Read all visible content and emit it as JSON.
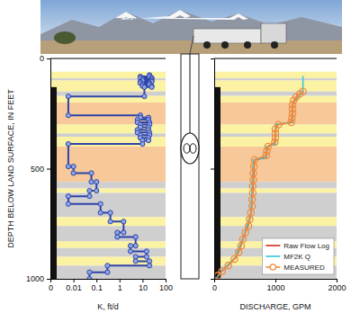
{
  "chart_data": [
    {
      "type": "line",
      "x_label": "K, ft/d",
      "y_label": "DEPTH BELOW LAND SURFACE, IN FEET",
      "log": "x",
      "xlim": [
        0.001,
        100
      ],
      "xticks": [
        {
          "value": 0.001,
          "label": "0"
        },
        0.01,
        0.1,
        1,
        10,
        100
      ],
      "ylim": [
        0,
        1000
      ],
      "yticks": [
        0,
        500,
        1000
      ],
      "bands": [
        {
          "top": 60,
          "bottom": 90,
          "color": "#fbf2a4"
        },
        {
          "top": 90,
          "bottom": 100,
          "color": "#cfcfcf"
        },
        {
          "top": 100,
          "bottom": 150,
          "color": "#fbf2a4"
        },
        {
          "top": 150,
          "bottom": 170,
          "color": "#cfcfcf"
        },
        {
          "top": 170,
          "bottom": 200,
          "color": "#fbf2a4"
        },
        {
          "top": 200,
          "bottom": 300,
          "color": "#f7c99a"
        },
        {
          "top": 300,
          "bottom": 340,
          "color": "#fbf2a4"
        },
        {
          "top": 340,
          "bottom": 355,
          "color": "#cfcfcf"
        },
        {
          "top": 355,
          "bottom": 400,
          "color": "#fbf2a4"
        },
        {
          "top": 400,
          "bottom": 560,
          "color": "#f7c99a"
        },
        {
          "top": 560,
          "bottom": 590,
          "color": "#cfcfcf"
        },
        {
          "top": 590,
          "bottom": 610,
          "color": "#fbf2a4"
        },
        {
          "top": 610,
          "bottom": 720,
          "color": "#cfcfcf"
        },
        {
          "top": 720,
          "bottom": 760,
          "color": "#fbf2a4"
        },
        {
          "top": 760,
          "bottom": 830,
          "color": "#cfcfcf"
        },
        {
          "top": 830,
          "bottom": 860,
          "color": "#fbf2a4"
        },
        {
          "top": 860,
          "bottom": 900,
          "color": "#cfcfcf"
        },
        {
          "top": 900,
          "bottom": 940,
          "color": "#fbf2a4"
        },
        {
          "top": 940,
          "bottom": 1000,
          "color": "#cfcfcf"
        }
      ],
      "casing": {
        "top": 130,
        "bottom": 1000
      },
      "series": [
        {
          "color": "#2f43a8",
          "marker": "circle",
          "line_style": "solid",
          "x": [
            20,
            20,
            8,
            8,
            25,
            25,
            10,
            10,
            25,
            25,
            8,
            8,
            20,
            20,
            10,
            10,
            25,
            25,
            12,
            12,
            0.006,
            0.006,
            8,
            8,
            18,
            18,
            6,
            6,
            20,
            20,
            8,
            8,
            18,
            18,
            6,
            6,
            20,
            20,
            8,
            8,
            18,
            18,
            10,
            10,
            0.006,
            0.006,
            0.01,
            0.01,
            0.06,
            0.06,
            0.1,
            0.1,
            0.05,
            0.05,
            0.006,
            0.006,
            0.15,
            0.15,
            0.4,
            0.4,
            1.5,
            1.5,
            0.8,
            0.8,
            5,
            5,
            3,
            3,
            15,
            15,
            5,
            5,
            20,
            20,
            0.3,
            0.3,
            0.05,
            0.05
          ],
          "y": [
            75,
            82,
            82,
            88,
            88,
            94,
            94,
            100,
            100,
            106,
            106,
            112,
            112,
            118,
            118,
            125,
            125,
            130,
            130,
            172,
            172,
            258,
            258,
            268,
            268,
            278,
            278,
            290,
            290,
            300,
            300,
            312,
            312,
            324,
            324,
            336,
            336,
            348,
            348,
            360,
            360,
            372,
            372,
            388,
            388,
            490,
            490,
            520,
            520,
            560,
            560,
            600,
            600,
            625,
            625,
            660,
            660,
            700,
            700,
            740,
            740,
            790,
            790,
            810,
            810,
            850,
            850,
            875,
            875,
            900,
            900,
            920,
            920,
            940,
            940,
            970,
            970,
            1000
          ]
        }
      ]
    },
    {
      "type": "line",
      "x_label": "DISCHARGE, GPM",
      "xlim": [
        0,
        2000
      ],
      "xticks": [
        0,
        1000,
        2000
      ],
      "ylim": [
        0,
        1000
      ],
      "yticks": [
        0,
        500,
        1000
      ],
      "tick_labels": "x",
      "legend": "lower right",
      "bands": [
        {
          "top": 60,
          "bottom": 90,
          "color": "#fbf2a4"
        },
        {
          "top": 90,
          "bottom": 100,
          "color": "#cfcfcf"
        },
        {
          "top": 100,
          "bottom": 150,
          "color": "#fbf2a4"
        },
        {
          "top": 150,
          "bottom": 170,
          "color": "#cfcfcf"
        },
        {
          "top": 170,
          "bottom": 200,
          "color": "#fbf2a4"
        },
        {
          "top": 200,
          "bottom": 300,
          "color": "#f7c99a"
        },
        {
          "top": 300,
          "bottom": 340,
          "color": "#fbf2a4"
        },
        {
          "top": 340,
          "bottom": 355,
          "color": "#cfcfcf"
        },
        {
          "top": 355,
          "bottom": 400,
          "color": "#fbf2a4"
        },
        {
          "top": 400,
          "bottom": 560,
          "color": "#f7c99a"
        },
        {
          "top": 560,
          "bottom": 590,
          "color": "#cfcfcf"
        },
        {
          "top": 590,
          "bottom": 610,
          "color": "#fbf2a4"
        },
        {
          "top": 610,
          "bottom": 720,
          "color": "#cfcfcf"
        },
        {
          "top": 720,
          "bottom": 760,
          "color": "#fbf2a4"
        },
        {
          "top": 760,
          "bottom": 830,
          "color": "#cfcfcf"
        },
        {
          "top": 830,
          "bottom": 860,
          "color": "#fbf2a4"
        },
        {
          "top": 860,
          "bottom": 900,
          "color": "#cfcfcf"
        },
        {
          "top": 900,
          "bottom": 940,
          "color": "#fbf2a4"
        },
        {
          "top": 940,
          "bottom": 1000,
          "color": "#cfcfcf"
        }
      ],
      "casing": {
        "top": 130,
        "bottom": 1000
      },
      "series": [
        {
          "name": "Raw Flow Log",
          "color": "#d42a1f",
          "line_style": "solid",
          "x": [
            1460,
            1360,
            1310,
            1285,
            1280,
            1270,
            1265,
            1040,
            1005,
            1000,
            990,
            900,
            865,
            855,
            845,
            660,
            650,
            640,
            630,
            620,
            600,
            575,
            520,
            470,
            420,
            360,
            260,
            140,
            60,
            30
          ],
          "y": [
            150,
            170,
            190,
            210,
            240,
            270,
            290,
            300,
            320,
            350,
            380,
            395,
            410,
            430,
            450,
            460,
            500,
            550,
            600,
            650,
            700,
            740,
            780,
            820,
            860,
            900,
            930,
            960,
            985,
            1000
          ]
        },
        {
          "name": "MF2K Q",
          "color": "#2ec7e0",
          "line_style": "solid",
          "x": [
            1450,
            1450,
            1280,
            1280,
            1000,
            1000,
            850,
            850,
            640,
            600,
            490,
            350,
            140,
            30
          ],
          "y": [
            80,
            150,
            205,
            290,
            300,
            390,
            400,
            450,
            460,
            700,
            800,
            900,
            960,
            1000
          ]
        },
        {
          "name": "MEASURED",
          "color": "#f08a3c",
          "marker": "open-circle",
          "line_style": "solid",
          "x": [
            1450,
            1400,
            1340,
            1300,
            1280,
            1280,
            1280,
            1270,
            1260,
            1050,
            1000,
            1000,
            1000,
            990,
            880,
            860,
            850,
            660,
            650,
            640,
            640,
            630,
            630,
            620,
            620,
            600,
            580,
            560,
            510,
            470,
            440,
            400,
            330,
            230,
            130,
            60
          ],
          "y": [
            150,
            160,
            175,
            190,
            210,
            230,
            250,
            270,
            290,
            300,
            320,
            340,
            360,
            380,
            400,
            420,
            440,
            460,
            490,
            520,
            550,
            580,
            610,
            640,
            670,
            700,
            730,
            760,
            790,
            820,
            850,
            880,
            910,
            940,
            965,
            985
          ]
        }
      ]
    }
  ]
}
